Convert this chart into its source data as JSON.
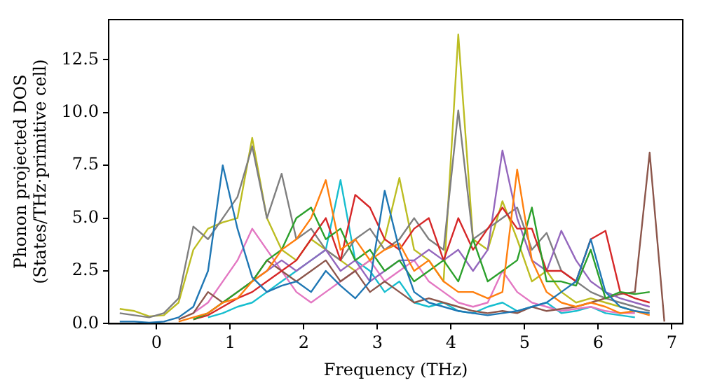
{
  "chart_data": {
    "type": "line",
    "xlabel": "Frequency (THz)",
    "ylabel": "Phonon projected DOS\n(States/THz·primitive cell)",
    "x": [
      -0.5,
      -0.3,
      -0.1,
      0.1,
      0.3,
      0.5,
      0.7,
      0.9,
      1.1,
      1.3,
      1.5,
      1.7,
      1.9,
      2.1,
      2.3,
      2.5,
      2.7,
      2.9,
      3.1,
      3.3,
      3.5,
      3.7,
      3.9,
      4.1,
      4.3,
      4.5,
      4.7,
      4.9,
      5.1,
      5.3,
      5.5,
      5.7,
      5.9,
      6.1,
      6.3,
      6.5,
      6.7,
      6.9
    ],
    "xlim": [
      -0.65,
      7.15
    ],
    "xticks": [
      0,
      1,
      2,
      3,
      4,
      5,
      6,
      7
    ],
    "ylim": [
      0,
      14.4
    ],
    "yticks": [
      {
        "value": 0,
        "label": "0.0"
      },
      2.5,
      {
        "value": 5,
        "label": "5.0"
      },
      7.5,
      {
        "value": 10,
        "label": "10.0"
      },
      12.5
    ],
    "grid": false,
    "legend": false,
    "marker": "none",
    "line_style": "solid",
    "series": [
      {
        "color": "#1f77b4",
        "values": [
          0.1,
          0.1,
          0.05,
          0.1,
          0.3,
          0.8,
          2.5,
          7.5,
          4.5,
          2.2,
          1.5,
          1.8,
          2.0,
          1.5,
          2.5,
          1.8,
          1.2,
          2.0,
          6.3,
          3.5,
          1.5,
          1.0,
          0.8,
          0.6,
          0.5,
          0.4,
          0.5,
          0.6,
          0.8,
          1.0,
          1.5,
          2.0,
          4.0,
          1.5,
          0.8,
          0.6,
          0.5,
          null
        ]
      },
      {
        "color": "#ff7f0e",
        "values": [
          null,
          null,
          null,
          null,
          0.1,
          0.3,
          0.5,
          1.0,
          1.2,
          2.0,
          2.5,
          3.5,
          4.0,
          5.0,
          6.8,
          3.5,
          4.0,
          3.0,
          3.5,
          3.8,
          2.5,
          3.0,
          2.0,
          1.5,
          1.5,
          1.2,
          1.5,
          7.3,
          3.0,
          1.5,
          1.0,
          0.8,
          1.0,
          0.8,
          0.5,
          0.6,
          0.4,
          null
        ]
      },
      {
        "color": "#2ca02c",
        "values": [
          null,
          null,
          null,
          null,
          null,
          0.2,
          0.5,
          1.0,
          1.5,
          2.0,
          3.0,
          3.5,
          5.0,
          5.5,
          4.0,
          4.5,
          3.0,
          3.5,
          2.5,
          3.0,
          2.0,
          2.5,
          3.0,
          2.0,
          4.0,
          2.0,
          2.5,
          3.0,
          5.5,
          2.0,
          2.0,
          1.8,
          3.5,
          1.2,
          1.5,
          1.4,
          1.5,
          null
        ]
      },
      {
        "color": "#d62728",
        "values": [
          null,
          null,
          null,
          null,
          null,
          0.2,
          0.4,
          0.8,
          1.2,
          1.5,
          2.0,
          2.5,
          3.0,
          4.0,
          5.0,
          3.0,
          6.1,
          5.5,
          4.0,
          3.5,
          4.5,
          5.0,
          3.0,
          5.0,
          3.5,
          4.5,
          5.5,
          4.5,
          4.5,
          2.5,
          2.5,
          2.0,
          4.0,
          4.4,
          1.5,
          1.2,
          1.0,
          null
        ]
      },
      {
        "color": "#9467bd",
        "values": [
          null,
          null,
          null,
          null,
          null,
          null,
          null,
          null,
          null,
          2.0,
          2.5,
          3.0,
          2.5,
          3.0,
          3.5,
          2.5,
          3.0,
          2.0,
          2.5,
          3.0,
          3.0,
          3.5,
          3.0,
          3.5,
          2.5,
          3.5,
          8.2,
          5.0,
          3.0,
          2.5,
          4.4,
          3.0,
          2.0,
          1.5,
          1.2,
          1.0,
          0.8,
          null
        ]
      },
      {
        "color": "#8c564b",
        "values": [
          null,
          null,
          null,
          null,
          0.2,
          0.5,
          1.5,
          1.0,
          1.5,
          2.0,
          3.0,
          2.5,
          2.0,
          2.5,
          3.0,
          2.0,
          2.5,
          1.5,
          2.0,
          1.5,
          1.0,
          1.2,
          1.0,
          0.8,
          0.6,
          0.5,
          0.6,
          0.5,
          0.8,
          0.6,
          0.7,
          0.8,
          1.0,
          1.2,
          1.4,
          1.5,
          8.1,
          0.1
        ]
      },
      {
        "color": "#e377c2",
        "values": [
          null,
          null,
          null,
          null,
          null,
          0.5,
          1.0,
          2.0,
          3.0,
          4.5,
          3.5,
          2.5,
          1.5,
          1.0,
          1.5,
          2.0,
          2.5,
          3.0,
          2.0,
          2.5,
          3.0,
          2.0,
          1.5,
          1.0,
          0.8,
          1.0,
          2.5,
          1.5,
          1.0,
          0.8,
          0.6,
          0.7,
          0.8,
          0.6,
          0.5,
          0.5,
          null,
          null
        ]
      },
      {
        "color": "#7f7f7f",
        "values": [
          0.5,
          0.4,
          0.3,
          0.5,
          1.2,
          4.6,
          4.0,
          5.0,
          6.0,
          8.4,
          5.0,
          7.1,
          4.0,
          4.5,
          3.5,
          3.0,
          4.0,
          4.5,
          3.5,
          4.0,
          5.0,
          4.0,
          3.5,
          10.1,
          4.0,
          4.5,
          5.0,
          5.5,
          3.5,
          4.3,
          2.5,
          2.0,
          1.5,
          1.2,
          1.0,
          0.8,
          0.6,
          null
        ]
      },
      {
        "color": "#bcbd22",
        "values": [
          0.7,
          0.6,
          0.35,
          0.4,
          1.0,
          3.5,
          4.5,
          4.8,
          5.0,
          8.8,
          5.0,
          3.5,
          3.0,
          4.0,
          3.5,
          3.0,
          2.5,
          3.0,
          4.0,
          6.9,
          3.5,
          3.0,
          2.0,
          13.7,
          4.0,
          3.5,
          5.8,
          4.0,
          2.0,
          2.5,
          1.5,
          1.0,
          1.2,
          1.0,
          0.8,
          0.6,
          null,
          null
        ]
      },
      {
        "color": "#17becf",
        "values": [
          null,
          null,
          null,
          null,
          null,
          null,
          0.3,
          0.5,
          0.8,
          1.0,
          1.5,
          2.0,
          2.5,
          3.0,
          3.5,
          6.8,
          3.0,
          2.5,
          1.5,
          2.0,
          1.0,
          0.8,
          1.0,
          0.6,
          0.5,
          0.8,
          1.0,
          0.6,
          0.8,
          1.0,
          0.5,
          0.6,
          0.8,
          0.5,
          0.4,
          0.3,
          null,
          null
        ]
      }
    ]
  }
}
